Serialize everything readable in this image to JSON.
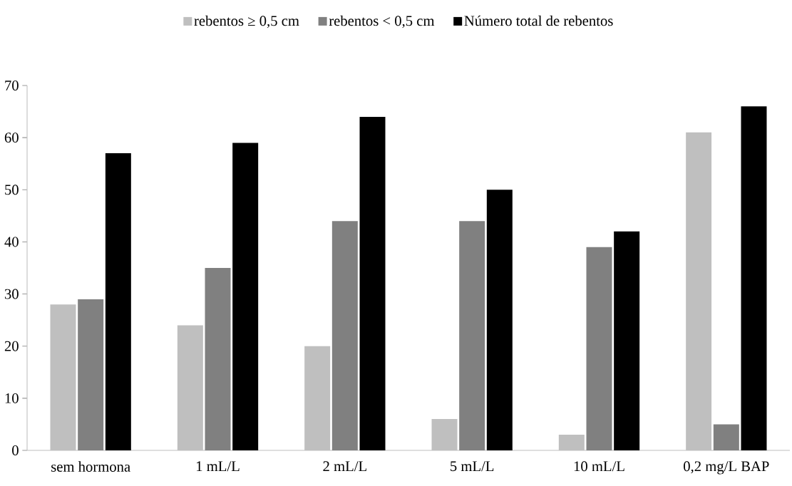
{
  "chart_data": {
    "type": "bar",
    "categories": [
      "sem hormona",
      "1 mL/L",
      "2 mL/L",
      "5 mL/L",
      "10 mL/L",
      "0,2 mg/L BAP"
    ],
    "series": [
      {
        "name": "rebentos ≥ 0,5 cm",
        "color": "#bfbfbf",
        "values": [
          28,
          24,
          20,
          6,
          3,
          61
        ]
      },
      {
        "name": "rebentos < 0,5 cm",
        "color": "#808080",
        "values": [
          29,
          35,
          44,
          44,
          39,
          5
        ]
      },
      {
        "name": "Número total de rebentos",
        "color": "#000000",
        "values": [
          57,
          59,
          64,
          50,
          42,
          66
        ]
      }
    ],
    "ylim": [
      0,
      70
    ],
    "yticks": [
      0,
      10,
      20,
      30,
      40,
      50,
      60,
      70
    ],
    "legend": "top"
  }
}
